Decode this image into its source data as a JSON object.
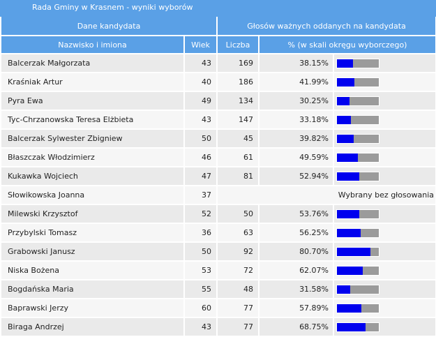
{
  "title": "Rada Gminy w Krasnem - wyniki wyborów",
  "headers": {
    "group_candidate": "Dane kandydata",
    "group_votes": "Głosów ważnych oddanych na kandydata",
    "name": "Nazwisko i imiona",
    "age": "Wiek",
    "count": "Liczba",
    "percent": "% (w skali okręgu wyborczego)"
  },
  "colors": {
    "accent": "#5aa0e6",
    "bar_fill": "#0000ee",
    "bar_track": "#9b9b9b"
  },
  "rows": [
    {
      "name": "Balcerzak Małgorzata",
      "age": "43",
      "votes": "169",
      "percent": "38.15%",
      "fraction": 0.3815
    },
    {
      "name": "Kraśniak Artur",
      "age": "40",
      "votes": "186",
      "percent": "41.99%",
      "fraction": 0.4199
    },
    {
      "name": "Pyra Ewa",
      "age": "49",
      "votes": "134",
      "percent": "30.25%",
      "fraction": 0.3025
    },
    {
      "name": "Tyc-Chrzanowska Teresa Elżbieta",
      "age": "43",
      "votes": "147",
      "percent": "33.18%",
      "fraction": 0.3318
    },
    {
      "name": "Balcerzak Sylwester Zbigniew",
      "age": "50",
      "votes": "45",
      "percent": "39.82%",
      "fraction": 0.3982
    },
    {
      "name": "Błaszczak Włodzimierz",
      "age": "46",
      "votes": "61",
      "percent": "49.59%",
      "fraction": 0.4959
    },
    {
      "name": "Kukawka Wojciech",
      "age": "47",
      "votes": "81",
      "percent": "52.94%",
      "fraction": 0.5294
    },
    {
      "name": "Słowikowska Joanna",
      "age": "37",
      "special": "Wybrany bez głosowania"
    },
    {
      "name": "Milewski Krzysztof",
      "age": "52",
      "votes": "50",
      "percent": "53.76%",
      "fraction": 0.5376
    },
    {
      "name": "Przybylski Tomasz",
      "age": "36",
      "votes": "63",
      "percent": "56.25%",
      "fraction": 0.5625
    },
    {
      "name": "Grabowski Janusz",
      "age": "50",
      "votes": "92",
      "percent": "80.70%",
      "fraction": 0.807
    },
    {
      "name": "Niska Bożena",
      "age": "53",
      "votes": "72",
      "percent": "62.07%",
      "fraction": 0.6207
    },
    {
      "name": "Bogdańska Maria",
      "age": "55",
      "votes": "48",
      "percent": "31.58%",
      "fraction": 0.3158
    },
    {
      "name": "Baprawski Jerzy",
      "age": "60",
      "votes": "77",
      "percent": "57.89%",
      "fraction": 0.5789
    },
    {
      "name": "Biraga Andrzej",
      "age": "43",
      "votes": "77",
      "percent": "68.75%",
      "fraction": 0.6875
    }
  ]
}
